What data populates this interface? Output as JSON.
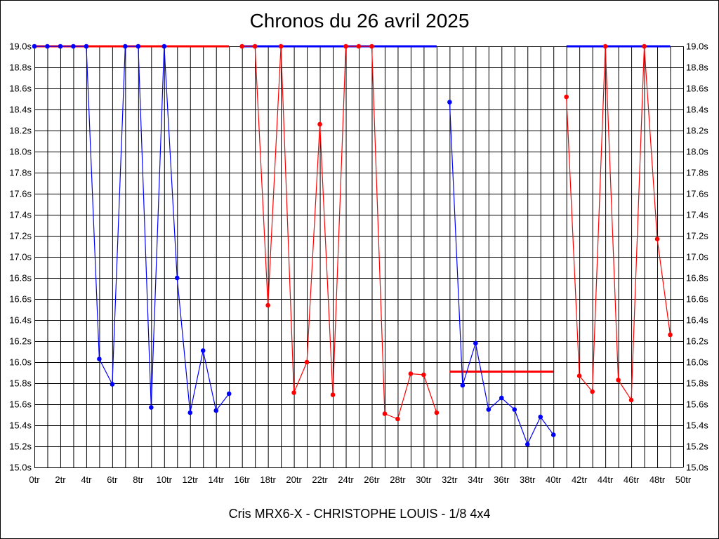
{
  "chart_data": {
    "type": "line",
    "title": "Chronos du 26 avril 2025",
    "caption": "Cris MRX6-X - CHRISTOPHE LOUIS - 1/8 4x4",
    "xlabel": "",
    "ylabel": "",
    "xlim": [
      0,
      50
    ],
    "ylim": [
      15.0,
      19.0
    ],
    "x_ticks": [
      "0tr",
      "2tr",
      "4tr",
      "6tr",
      "8tr",
      "10tr",
      "12tr",
      "14tr",
      "16tr",
      "18tr",
      "20tr",
      "22tr",
      "24tr",
      "26tr",
      "28tr",
      "30tr",
      "32tr",
      "34tr",
      "36tr",
      "38tr",
      "40tr",
      "42tr",
      "44tr",
      "46tr",
      "48tr",
      "50tr"
    ],
    "y_ticks": [
      "15.0s",
      "15.2s",
      "15.4s",
      "15.6s",
      "15.8s",
      "16.0s",
      "16.2s",
      "16.4s",
      "16.6s",
      "16.8s",
      "17.0s",
      "17.2s",
      "17.4s",
      "17.6s",
      "17.8s",
      "18.0s",
      "18.2s",
      "18.4s",
      "18.6s",
      "18.8s",
      "19.0s"
    ],
    "grid": true,
    "series": [
      {
        "color": "#0000ff",
        "points": [
          [
            0,
            19.0
          ],
          [
            1,
            19.0
          ],
          [
            2,
            19.0
          ],
          [
            3,
            19.0
          ],
          [
            4,
            19.0
          ],
          [
            5,
            16.03
          ],
          [
            6,
            15.79
          ],
          [
            7,
            19.0
          ],
          [
            8,
            19.0
          ],
          [
            9,
            15.57
          ],
          [
            10,
            19.0
          ],
          [
            11,
            16.8
          ],
          [
            12,
            15.52
          ],
          [
            13,
            16.11
          ],
          [
            14,
            15.54
          ],
          [
            15,
            15.7
          ]
        ]
      },
      {
        "color": "#ff0000",
        "points": [
          [
            16,
            19.0
          ],
          [
            17,
            19.0
          ],
          [
            18,
            16.54
          ],
          [
            19,
            19.0
          ],
          [
            20,
            15.71
          ],
          [
            21,
            16.0
          ],
          [
            22,
            18.26
          ],
          [
            23,
            15.69
          ],
          [
            24,
            19.0
          ],
          [
            25,
            19.0
          ],
          [
            26,
            19.0
          ],
          [
            27,
            15.51
          ],
          [
            28,
            15.46
          ],
          [
            29,
            15.89
          ],
          [
            30,
            15.88
          ],
          [
            31,
            15.52
          ]
        ]
      },
      {
        "color": "#0000ff",
        "points": [
          [
            32,
            18.47
          ],
          [
            33,
            15.78
          ],
          [
            34,
            16.18
          ],
          [
            35,
            15.55
          ],
          [
            36,
            15.66
          ],
          [
            37,
            15.55
          ],
          [
            38,
            15.22
          ],
          [
            39,
            15.48
          ],
          [
            40,
            15.31
          ]
        ]
      },
      {
        "color": "#ff0000",
        "points": [
          [
            41,
            18.52
          ],
          [
            42,
            15.87
          ],
          [
            43,
            15.72
          ],
          [
            44,
            19.0
          ],
          [
            45,
            15.83
          ],
          [
            46,
            15.64
          ],
          [
            47,
            19.0
          ],
          [
            48,
            17.17
          ],
          [
            49,
            16.26
          ]
        ]
      }
    ],
    "reference_lines": [
      {
        "color": "#ff0000",
        "y": 19.0,
        "x_start": 0,
        "x_end": 15
      },
      {
        "color": "#0000ff",
        "y": 19.0,
        "x_start": 16,
        "x_end": 31
      },
      {
        "color": "#ff0000",
        "y": 15.91,
        "x_start": 32,
        "x_end": 40
      },
      {
        "color": "#0000ff",
        "y": 19.0,
        "x_start": 41,
        "x_end": 49
      }
    ]
  }
}
